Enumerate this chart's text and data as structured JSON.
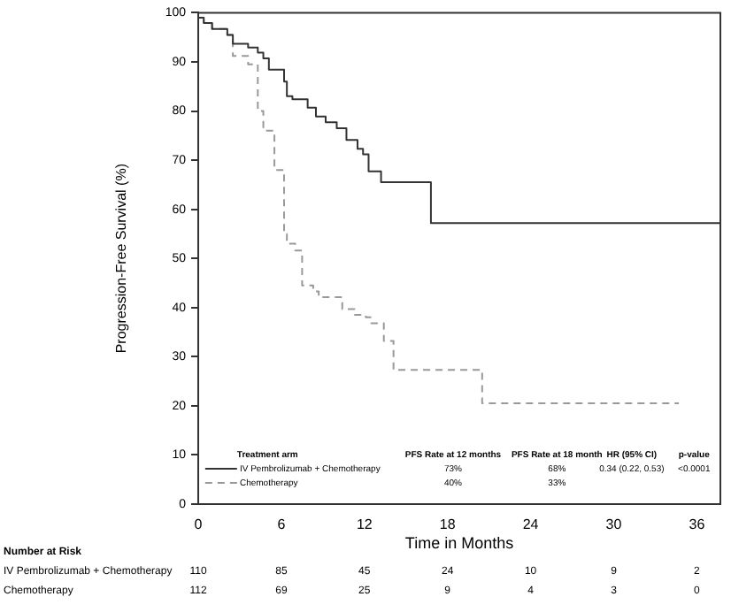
{
  "chart_data": {
    "type": "step",
    "xlabel": "Time in Months",
    "ylabel": "Progression-Free Survival (%)",
    "xlim": [
      0,
      37.7
    ],
    "ylim": [
      0,
      100
    ],
    "xticks": [
      0,
      6,
      12,
      18,
      24,
      30,
      36
    ],
    "yticks": [
      0,
      10,
      20,
      30,
      40,
      50,
      60,
      70,
      80,
      90,
      100
    ],
    "grid": false,
    "legend": "bottom",
    "line_style": "solid",
    "series": [
      {
        "name": "IV Pembrolizumab + Chemotherapy",
        "color": "#333333",
        "x": [
          0,
          0.4,
          1.0,
          2.1,
          2.5,
          3.6,
          4.3,
          4.7,
          5.1,
          6.2,
          6.4,
          6.8,
          7.9,
          8.5,
          9.2,
          10.0,
          10.7,
          11.5,
          11.9,
          12.3,
          13.2,
          16.8,
          30.5,
          37.7
        ],
        "values": [
          100,
          99,
          97.9,
          96.7,
          95.5,
          93.7,
          92.9,
          91.9,
          90.7,
          88.4,
          86,
          83,
          82.4,
          80.7,
          78.9,
          77.7,
          76.5,
          74.1,
          72.3,
          71.2,
          67.7,
          65.5,
          57.2,
          57.2
        ]
      },
      {
        "name": "Chemotherapy",
        "color": "#999999",
        "line_style": "dashed",
        "x": [
          0,
          0.4,
          1.0,
          2.1,
          2.5,
          3.6,
          4.3,
          4.7,
          5.5,
          6.2,
          6.4,
          7.0,
          7.5,
          8.3,
          8.7,
          10.4,
          11.3,
          12.1,
          12.5,
          13.4,
          14.1,
          20.5,
          24.1,
          34.7
        ],
        "values": [
          100,
          99,
          97.9,
          96.7,
          95.5,
          91.2,
          89.5,
          80,
          76,
          68,
          55,
          53,
          51.6,
          44.5,
          43.3,
          42.1,
          39.7,
          38.5,
          38,
          36.8,
          33.2,
          27.3,
          20.5,
          20.5
        ]
      }
    ],
    "annotations": [
      "Treatment arm",
      "PFS Rate at 12 months",
      "PFS Rate at 18 month",
      "HR (95% CI)",
      "p-value",
      "73%",
      "68%",
      "0.34 (0.22, 0.53)",
      "<0.0001",
      "40%",
      "33%",
      "Number at Risk",
      "110",
      "85",
      "45",
      "24",
      "10",
      "9",
      "2",
      "112",
      "69",
      "25",
      "9",
      "4",
      "3",
      "0"
    ]
  }
}
